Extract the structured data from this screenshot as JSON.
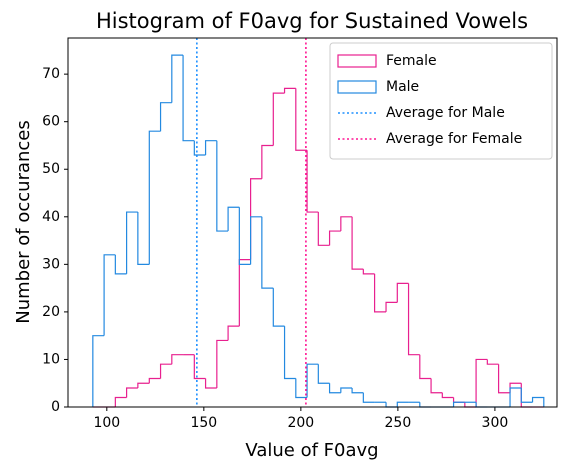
{
  "chart_data": {
    "type": "histogram",
    "title": "Histogram of F0avg for Sustained Vowels",
    "x_label": "Value of F0avg",
    "y_label": "Number of occurances",
    "bins": [
      92.8,
      98.6,
      104.4,
      110.2,
      116.0,
      121.9,
      127.7,
      133.5,
      139.3,
      145.1,
      150.9,
      156.7,
      162.5,
      168.3,
      174.1,
      179.9,
      185.8,
      191.6,
      197.4,
      203.2,
      209.0,
      214.8,
      220.6,
      226.4,
      232.2,
      238.0,
      243.9,
      249.7,
      255.5,
      261.3,
      267.1,
      272.9,
      278.7,
      284.5,
      290.3,
      296.1,
      301.9,
      307.8,
      313.6,
      319.4,
      325.2
    ],
    "series": [
      {
        "name": "Female",
        "color": "#e8208f",
        "values": [
          0,
          0,
          2,
          4,
          5,
          6,
          9,
          11,
          11,
          6,
          4,
          14,
          17,
          31,
          48,
          55,
          66,
          67,
          54,
          41,
          34,
          37,
          40,
          29,
          28,
          20,
          22,
          26,
          11,
          6,
          3,
          2,
          1,
          0,
          10,
          9,
          3,
          5,
          0,
          0
        ]
      },
      {
        "name": "Male",
        "color": "#2389e0",
        "values": [
          15,
          32,
          28,
          41,
          30,
          58,
          64,
          74,
          56,
          53,
          56,
          37,
          42,
          30,
          40,
          25,
          17,
          6,
          2,
          9,
          5,
          3,
          4,
          3,
          1,
          1,
          0,
          1,
          1,
          0,
          0,
          0,
          1,
          1,
          0,
          0,
          0,
          4,
          1,
          2
        ]
      }
    ],
    "lines": [
      {
        "name": "Average for Male",
        "color": "#1e90ff",
        "x": 146.4
      },
      {
        "name": "Average for Female",
        "color": "#ff1493",
        "x": 202.6
      }
    ],
    "xlim": [
      80,
      332
    ],
    "ylim": [
      0,
      77.6
    ],
    "xticks": [
      100,
      150,
      200,
      250,
      300
    ],
    "yticks": [
      0,
      10,
      20,
      30,
      40,
      50,
      60,
      70
    ],
    "legend": "upper right"
  }
}
